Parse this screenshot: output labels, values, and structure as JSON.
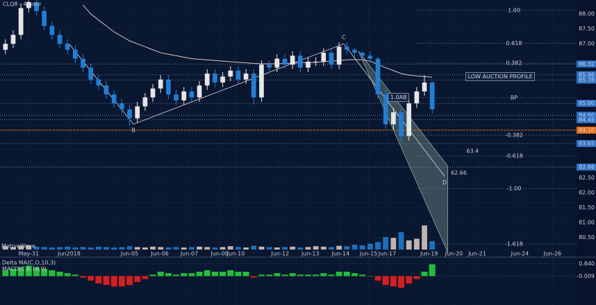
{
  "chart_data": [
    {
      "type": "candlestick",
      "title": "CLQ8 - 4 hour",
      "watermark": "MotiveWave",
      "open": [
        86.8,
        87.0,
        87.3,
        88.2,
        88.4,
        88.1,
        87.6,
        87.3,
        87.0,
        86.8,
        86.5,
        86.2,
        85.8,
        85.6,
        85.3,
        85.0,
        84.8,
        84.5,
        84.9,
        85.2,
        85.5,
        85.8,
        85.3,
        85.1,
        85.4,
        85.2,
        85.6,
        86.0,
        85.7,
        85.9,
        86.1,
        85.8,
        86.0,
        85.2,
        86.3,
        86.2,
        86.5,
        86.3,
        86.6,
        86.2,
        86.4,
        86.4,
        86.7,
        86.3,
        86.9,
        86.8,
        86.7,
        86.6,
        86.5,
        85.3,
        84.3,
        84.7,
        83.9,
        85.0,
        85.4,
        85.7
      ],
      "high": [
        87.15,
        87.45,
        88.35,
        88.45,
        88.45,
        88.25,
        87.75,
        87.45,
        87.15,
        86.95,
        86.65,
        86.35,
        85.95,
        85.75,
        85.45,
        85.15,
        84.95,
        85.05,
        85.35,
        85.65,
        85.95,
        85.95,
        85.45,
        85.55,
        85.55,
        85.75,
        86.15,
        86.15,
        86.05,
        86.25,
        86.25,
        86.15,
        86.15,
        86.45,
        86.45,
        86.65,
        86.65,
        86.75,
        86.75,
        86.55,
        86.55,
        86.85,
        86.85,
        87.05,
        87.05,
        86.85,
        86.75,
        86.75,
        86.55,
        85.45,
        84.85,
        84.85,
        85.15,
        85.55,
        85.95,
        85.75
      ],
      "low": [
        86.65,
        86.85,
        87.15,
        88.05,
        87.95,
        87.45,
        87.15,
        86.85,
        86.65,
        86.35,
        86.05,
        85.65,
        85.45,
        85.15,
        84.85,
        84.65,
        84.25,
        84.35,
        84.75,
        85.05,
        85.35,
        85.15,
        84.95,
        84.95,
        85.05,
        85.05,
        85.45,
        85.55,
        85.55,
        85.75,
        85.65,
        85.65,
        84.95,
        85.05,
        86.05,
        86.05,
        86.15,
        86.15,
        86.05,
        86.05,
        86.25,
        86.25,
        86.15,
        86.15,
        86.65,
        86.55,
        86.45,
        86.35,
        85.15,
        84.15,
        84.1,
        83.7,
        83.75,
        84.85,
        85.25,
        84.65
      ],
      "close": [
        87.0,
        87.3,
        88.2,
        88.4,
        88.1,
        87.6,
        87.3,
        87.0,
        86.8,
        86.5,
        86.2,
        85.8,
        85.6,
        85.3,
        85.0,
        84.8,
        84.5,
        84.9,
        85.2,
        85.5,
        85.8,
        85.3,
        85.1,
        85.4,
        85.2,
        85.6,
        86.0,
        85.7,
        85.9,
        86.1,
        85.8,
        86.0,
        85.2,
        86.3,
        86.2,
        86.5,
        86.3,
        86.6,
        86.2,
        86.4,
        86.4,
        86.7,
        86.3,
        86.9,
        86.8,
        86.7,
        86.6,
        86.5,
        85.3,
        84.3,
        84.7,
        83.9,
        85.0,
        85.4,
        85.7,
        84.8
      ],
      "up_color": "#e6e6e6",
      "down_color": "#1f7fd6",
      "moving_average": {
        "color": "#d8c6c6",
        "values": [
          null,
          null,
          null,
          null,
          null,
          null,
          null,
          null,
          null,
          null,
          88.3,
          88.0,
          87.8,
          87.6,
          87.4,
          87.25,
          87.1,
          87.0,
          86.9,
          86.8,
          86.7,
          86.65,
          86.6,
          86.55,
          86.5,
          86.48,
          86.46,
          86.44,
          86.42,
          86.4,
          86.38,
          86.36,
          86.34,
          86.33,
          86.33,
          86.33,
          86.34,
          86.35,
          86.36,
          86.37,
          86.38,
          86.4,
          86.42,
          86.44,
          86.46,
          86.47,
          86.46,
          86.42,
          86.3,
          86.2,
          86.1,
          86.0,
          85.95,
          85.92,
          85.9,
          85.88
        ]
      },
      "xlim": [
        -0.7,
        73.6
      ],
      "ylim": [
        79.86,
        88.47
      ],
      "xticks": [
        {
          "value": 3.0,
          "label": "May-31"
        },
        {
          "value": 8.2,
          "label": "Jun2018"
        },
        {
          "value": 16.0,
          "label": "Jun-05"
        },
        {
          "value": 19.9,
          "label": "Jun-06"
        },
        {
          "value": 23.7,
          "label": "Jun-07"
        },
        {
          "value": 27.6,
          "label": "Jun-08"
        },
        {
          "value": 29.7,
          "label": "Jun-10"
        },
        {
          "value": 35.4,
          "label": "Jun-12"
        },
        {
          "value": 39.3,
          "label": "Jun-13"
        },
        {
          "value": 43.2,
          "label": "Jun-14"
        },
        {
          "value": 46.8,
          "label": "Jun-15"
        },
        {
          "value": 49.2,
          "label": "Jun-17"
        },
        {
          "value": 54.6,
          "label": "Jun-19"
        },
        {
          "value": 57.8,
          "label": "Jun-20"
        },
        {
          "value": 60.8,
          "label": "Jun-21"
        },
        {
          "value": 66.3,
          "label": "Jun-24"
        },
        {
          "value": 70.5,
          "label": "Jun-26"
        }
      ],
      "yticks": [
        {
          "value": 88,
          "label": "88.00"
        },
        {
          "value": 87.5,
          "label": "87.50"
        },
        {
          "value": 87,
          "label": "87.00"
        },
        {
          "value": 82.5,
          "label": "82.50"
        },
        {
          "value": 82,
          "label": "82.00"
        },
        {
          "value": 81.5,
          "label": "81.50"
        },
        {
          "value": 81,
          "label": "81.00"
        },
        {
          "value": 80.5,
          "label": "80.50"
        }
      ],
      "levels": [
        {
          "value": 86.32,
          "label": "86.32",
          "color": "#2f74c8"
        },
        {
          "value": 85.96,
          "label": "85.96",
          "color": "#2f74c8"
        },
        {
          "value": 85.78,
          "label": "85.78",
          "color": "#2f74c8"
        },
        {
          "value": 85,
          "label": "85.00",
          "color": "#2f74c8"
        },
        {
          "value": 84.6,
          "label": "84.60",
          "color": "#2f74c8"
        },
        {
          "value": 84.45,
          "label": "84.45",
          "color": "#2f74c8"
        },
        {
          "value": 84.1,
          "label": "84.10",
          "color": "#e8731a"
        },
        {
          "value": 83.65,
          "label": "83.65",
          "color": "#2f74c8"
        },
        {
          "value": 82.86,
          "label": "82.86",
          "color": "#2f74c8"
        }
      ],
      "fib_levels": [
        {
          "label": "1.00",
          "price": 88.12
        },
        {
          "label": "0.618",
          "price": 87.02
        },
        {
          "label": "0.382",
          "price": 86.35
        },
        {
          "label": "BP",
          "price": 85.19
        },
        {
          "label": "-0.382",
          "price": 83.93
        },
        {
          "label": "-0.618",
          "price": 83.23
        },
        {
          "label": "-1.00",
          "price": 82.14
        },
        {
          "label": "-1.618",
          "price": 80.28
        }
      ],
      "pattern": [
        {
          "x": 8.2,
          "y": 87.0
        },
        {
          "label": "B",
          "x": 16.5,
          "y": 84.3
        },
        {
          "label": "C",
          "x": 43.6,
          "y": 87.0
        },
        {
          "label": "D",
          "x": 56.6,
          "y": 82.55
        }
      ],
      "projection": [
        [
          45.5,
          86.75
        ],
        [
          57.0,
          80.0
        ],
        [
          57.0,
          82.9
        ]
      ],
      "annotations": [
        {
          "text": "62.66",
          "x": 57.4,
          "y": 82.66
        },
        {
          "text": "63.4",
          "x": 59.4,
          "y": 83.4
        },
        {
          "text": "1.0AB",
          "x": 49.6,
          "y": 85.2,
          "boxed": true
        },
        {
          "text": "LOW AUCTION PROFILE",
          "x": 59.6,
          "y": 85.9,
          "boxed": true
        }
      ],
      "grid": true
    },
    {
      "type": "volume",
      "values": [
        8,
        6,
        9,
        10,
        7,
        6,
        5,
        6,
        7,
        5,
        6,
        5,
        7,
        6,
        5,
        6,
        8,
        6,
        5,
        7,
        6,
        5,
        6,
        5,
        6,
        7,
        6,
        5,
        6,
        8,
        6,
        5,
        9,
        7,
        6,
        5,
        6,
        7,
        5,
        6,
        8,
        7,
        6,
        9,
        8,
        12,
        10,
        14,
        18,
        30,
        28,
        42,
        22,
        26,
        58,
        20
      ],
      "ylim": [
        0,
        100
      ]
    },
    {
      "type": "histogram-osc",
      "title": "Delta MA(C,O,10,3)",
      "subtitle": "MACD(C,8,16,9)",
      "values": [
        0.4,
        0.5,
        0.6,
        0.7,
        0.6,
        0.5,
        0.4,
        0.3,
        0.2,
        0.1,
        -0.1,
        -0.3,
        -0.5,
        -0.6,
        -0.7,
        -0.7,
        -0.6,
        -0.4,
        -0.2,
        0.1,
        0.3,
        0.2,
        0.1,
        0.2,
        0.2,
        0.3,
        0.4,
        0.3,
        0.3,
        0.4,
        0.3,
        0.3,
        -0.1,
        0.1,
        0.1,
        0.2,
        0.1,
        0.2,
        0.1,
        0.1,
        0.1,
        0.2,
        0.1,
        0.3,
        0.3,
        0.2,
        0.1,
        0.0,
        -0.3,
        -0.6,
        -0.7,
        -0.8,
        -0.5,
        -0.2,
        0.3,
        0.8
      ],
      "positive_color": "#1fbf3a",
      "negative_color": "#d42020",
      "ylim": [
        -1.96,
        1.24
      ],
      "yticks": [
        {
          "value": 0.84,
          "label": "0.840"
        },
        {
          "value": -0.009,
          "label": "-0.009"
        }
      ]
    }
  ]
}
